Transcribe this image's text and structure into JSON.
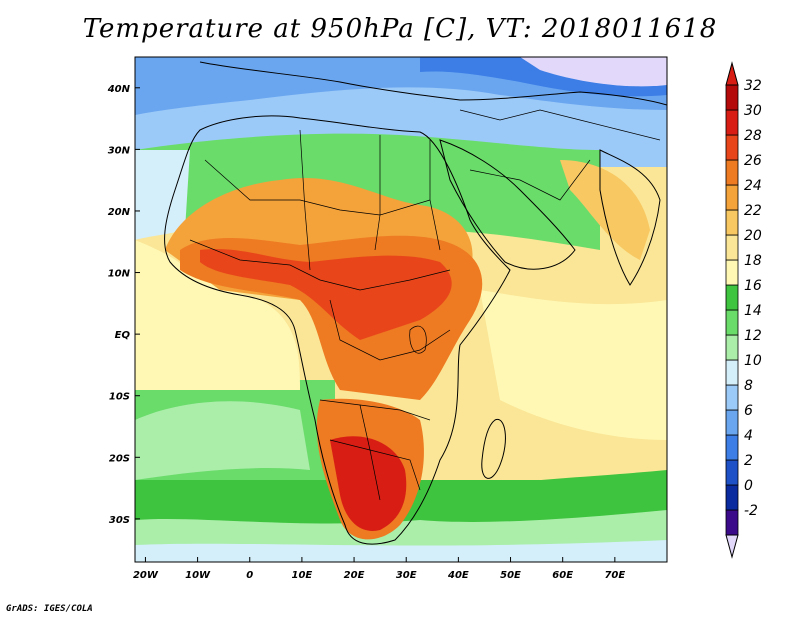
{
  "title": "Temperature at 950hPa [C], VT: 2018011618",
  "credit": "GrADS: IGES/COLA",
  "map": {
    "projection": "lat-lon",
    "lon_range": [
      -22,
      80
    ],
    "lat_range": [
      -37,
      45
    ],
    "x_ticks": [
      "20W",
      "10W",
      "0",
      "10E",
      "20E",
      "30E",
      "40E",
      "50E",
      "60E",
      "70E"
    ],
    "x_tick_values": [
      -20,
      -10,
      0,
      10,
      20,
      30,
      40,
      50,
      60,
      70
    ],
    "y_ticks": [
      "40N",
      "30N",
      "20N",
      "10N",
      "EQ",
      "10S",
      "20S",
      "30S"
    ],
    "y_tick_values": [
      40,
      30,
      20,
      10,
      0,
      -10,
      -20,
      -30
    ],
    "field": "Temperature at 950hPa",
    "units": "C"
  },
  "colorbar": {
    "labels": [
      "32",
      "30",
      "28",
      "26",
      "24",
      "22",
      "20",
      "18",
      "16",
      "14",
      "12",
      "10",
      "8",
      "6",
      "4",
      "2",
      "0",
      "-2"
    ],
    "colors": [
      "#3a0a8a",
      "#0a2aa0",
      "#1e50c8",
      "#3c7ee6",
      "#6aa6f0",
      "#9ccaf8",
      "#d4eefa",
      "#aaeeaa",
      "#6adc6a",
      "#3ec43e",
      "#fff8b4",
      "#fae696",
      "#f8c862",
      "#f4a23a",
      "#ee7a22",
      "#e8461a",
      "#d81e14",
      "#b40a0a"
    ],
    "top_arrow_color": "#d81e14",
    "bottom_arrow_color": "#e2d8fa"
  }
}
